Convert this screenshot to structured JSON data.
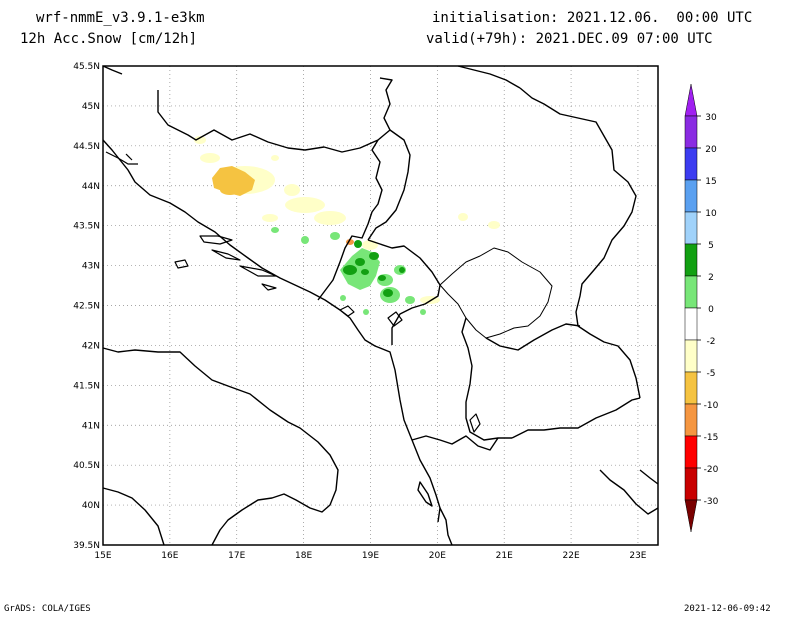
{
  "header": {
    "model": "wrf-nmmE_v3.9.1-e3km",
    "field": "12h Acc.Snow [cm/12h]",
    "init": "initialisation: 2021.12.06.  00:00 UTC",
    "valid": "valid(+79h): 2021.DEC.09 07:00 UTC"
  },
  "map": {
    "lon_labels": [
      "15E",
      "16E",
      "17E",
      "18E",
      "19E",
      "20E",
      "21E",
      "22E",
      "23E"
    ],
    "lat_labels": [
      "45.5N",
      "45N",
      "44.5N",
      "44N",
      "43.5N",
      "43N",
      "42.5N",
      "42N",
      "41.5N",
      "41N",
      "40.5N",
      "40N",
      "39.5N"
    ],
    "lon_range": [
      15,
      23.3
    ],
    "lat_range": [
      39.5,
      45.5
    ],
    "grid": "dotted"
  },
  "colorbar": {
    "labels": [
      "30",
      "20",
      "15",
      "10",
      "5",
      "2",
      "0",
      "-2",
      "-5",
      "-10",
      "-15",
      "-20",
      "-30"
    ],
    "colors": [
      "#8a2be2",
      "#3c3cf0",
      "#5aa0f0",
      "#a0d2fa",
      "#12a012",
      "#78e678",
      "#ffffff",
      "#ffffc8",
      "#f5c341",
      "#f59641",
      "#ff0000",
      "#c80000",
      "#8c0000"
    ],
    "top_arrow_color": "#a020f0",
    "bottom_arrow_color": "#7a0000"
  },
  "footer": {
    "left": "GrADS: COLA/IGES",
    "right": "2021-12-06-09:42"
  }
}
